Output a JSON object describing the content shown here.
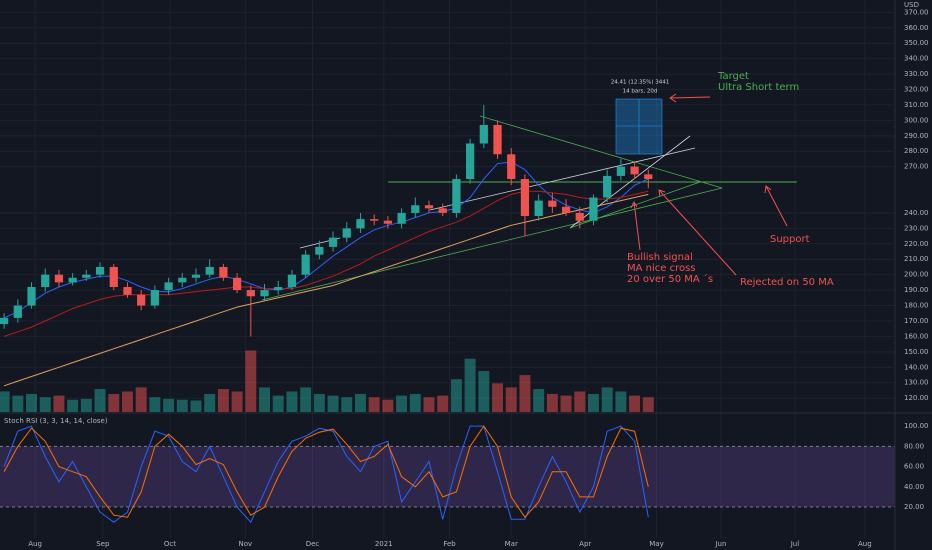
{
  "chart_data": [
    {
      "type": "candlestick",
      "currency": "USD",
      "open": [
        168,
        172,
        180,
        192,
        200,
        195,
        198,
        200,
        205,
        192,
        187,
        180,
        190,
        195,
        198,
        200,
        205,
        198,
        190,
        186,
        190,
        192,
        200,
        213,
        218,
        224,
        230,
        236,
        235,
        233,
        240,
        245,
        243,
        240,
        262,
        285,
        297,
        278,
        262,
        238,
        248,
        244,
        240,
        235,
        250,
        264,
        270,
        265
      ],
      "high": [
        175,
        184,
        195,
        204,
        203,
        201,
        203,
        208,
        207,
        195,
        190,
        193,
        198,
        201,
        204,
        210,
        207,
        201,
        193,
        194,
        196,
        203,
        216,
        222,
        228,
        234,
        240,
        239,
        238,
        243,
        250,
        248,
        246,
        265,
        288,
        310,
        300,
        282,
        265,
        252,
        253,
        249,
        244,
        252,
        268,
        275,
        273,
        268
      ],
      "low": [
        165,
        169,
        178,
        189,
        192,
        193,
        196,
        198,
        190,
        185,
        177,
        178,
        187,
        192,
        195,
        198,
        196,
        188,
        160,
        183,
        187,
        190,
        198,
        210,
        215,
        221,
        227,
        232,
        230,
        230,
        237,
        240,
        238,
        237,
        259,
        282,
        275,
        258,
        225,
        235,
        240,
        238,
        230,
        232,
        247,
        261,
        262,
        256
      ],
      "close": [
        172,
        180,
        192,
        200,
        195,
        198,
        200,
        205,
        192,
        187,
        180,
        190,
        195,
        198,
        200,
        205,
        198,
        190,
        186,
        190,
        192,
        200,
        213,
        218,
        224,
        230,
        236,
        235,
        233,
        240,
        245,
        243,
        240,
        262,
        285,
        297,
        278,
        262,
        238,
        248,
        244,
        240,
        235,
        250,
        264,
        270,
        265,
        262
      ],
      "up_color": "#26a69a",
      "down_color": "#ef5350",
      "moving_averages": [
        {
          "color": "#2962ff",
          "values": [
            172,
            176,
            182,
            188,
            192,
            195,
            197,
            199,
            199,
            196,
            192,
            189,
            189,
            191,
            194,
            197,
            199,
            197,
            194,
            191,
            190,
            192,
            198,
            205,
            212,
            218,
            224,
            229,
            232,
            234,
            237,
            240,
            241,
            243,
            250,
            262,
            272,
            273,
            268,
            258,
            250,
            245,
            242,
            240,
            244,
            250,
            258,
            262
          ]
        },
        {
          "color": "#b71c1c",
          "values": [
            160,
            163,
            166,
            170,
            174,
            178,
            181,
            184,
            186,
            187,
            187,
            187,
            187,
            188,
            189,
            190,
            191,
            192,
            192,
            191,
            191,
            191,
            193,
            196,
            199,
            203,
            207,
            212,
            216,
            220,
            224,
            228,
            231,
            234,
            238,
            243,
            248,
            252,
            254,
            254,
            253,
            252,
            250,
            249,
            249,
            250,
            252,
            254
          ]
        },
        {
          "color": "#e0a060",
          "values": [
            128,
            131,
            134,
            137,
            140,
            143,
            146,
            149,
            152,
            155,
            158,
            161,
            164,
            167,
            170,
            173,
            176,
            179,
            181,
            183,
            185,
            187,
            189,
            191,
            193,
            196,
            199,
            202,
            205,
            208,
            211,
            214,
            217,
            220,
            223,
            226,
            229,
            232,
            234,
            236,
            238,
            240,
            242,
            244,
            246,
            248,
            250,
            252
          ]
        }
      ],
      "volume": {
        "ylim": [
          0,
          100
        ],
        "values": [
          25,
          20,
          22,
          18,
          20,
          15,
          16,
          28,
          22,
          25,
          30,
          18,
          16,
          15,
          14,
          22,
          28,
          25,
          75,
          30,
          20,
          25,
          30,
          22,
          20,
          18,
          22,
          18,
          15,
          20,
          22,
          18,
          20,
          40,
          65,
          50,
          35,
          30,
          45,
          28,
          22,
          20,
          25,
          22,
          30,
          25,
          20,
          18
        ]
      },
      "xlim": [
        -0.3,
        65
      ],
      "xticks": [
        {
          "value": 2.26,
          "label": "Aug"
        },
        {
          "value": 7.2,
          "label": "Sep"
        },
        {
          "value": 12.1,
          "label": "Oct"
        },
        {
          "value": 17.6,
          "label": "Nov"
        },
        {
          "value": 22.5,
          "label": "Dec"
        },
        {
          "value": 27.7,
          "label": "2021"
        },
        {
          "value": 32.5,
          "label": "Feb"
        },
        {
          "value": 37.0,
          "label": "Mar"
        },
        {
          "value": 42.4,
          "label": "Apr"
        },
        {
          "value": 47.6,
          "label": "May"
        },
        {
          "value": 52.3,
          "label": "Jun"
        },
        {
          "value": 57.7,
          "label": "Jul"
        },
        {
          "value": 62.8,
          "label": "Aug"
        }
      ],
      "ylim": [
        111,
        378
      ],
      "yticks": [
        {
          "value": 120,
          "label": "120.00"
        },
        {
          "value": 130,
          "label": "130.00"
        },
        {
          "value": 140,
          "label": "140.00"
        },
        {
          "value": 150,
          "label": "150.00"
        },
        {
          "value": 160,
          "label": "160.00"
        },
        {
          "value": 170,
          "label": "170.00"
        },
        {
          "value": 180,
          "label": "180.00"
        },
        {
          "value": 190,
          "label": "190.00"
        },
        {
          "value": 200,
          "label": "200.00"
        },
        {
          "value": 210,
          "label": "210.00"
        },
        {
          "value": 220,
          "label": "220.00"
        },
        {
          "value": 230,
          "label": "230.00"
        },
        {
          "value": 240,
          "label": "240.00"
        },
        {
          "value": 270,
          "label": "270.00"
        },
        {
          "value": 280,
          "label": "280.00"
        },
        {
          "value": 290,
          "label": "290.00"
        },
        {
          "value": 300,
          "label": "300.00"
        },
        {
          "value": 310,
          "label": "310.00"
        },
        {
          "value": 320,
          "label": "320.00"
        },
        {
          "value": 330,
          "label": "330.00"
        },
        {
          "value": 340,
          "label": "340.00"
        },
        {
          "value": 350,
          "label": "350.00"
        },
        {
          "value": 360,
          "label": "360.00"
        },
        {
          "value": 370,
          "label": "370.00"
        }
      ],
      "grid": true,
      "annotations": [
        "Target",
        "Ultra Short term",
        "24.41 (12.35%) 3441",
        "14 bars, 20d",
        "Support",
        "Bullish signal",
        "MA nice cross",
        "20 over 50 MA ´s",
        "Rejected on 50 MA"
      ]
    },
    {
      "type": "oscillator",
      "title": "Stoch RSI (3, 3, 14, 14, close)",
      "series": [
        {
          "color": "#2962ff",
          "values": [
            60,
            95,
            100,
            70,
            45,
            65,
            40,
            15,
            5,
            15,
            60,
            95,
            90,
            65,
            55,
            80,
            50,
            20,
            5,
            35,
            65,
            85,
            90,
            98,
            95,
            70,
            55,
            80,
            85,
            25,
            45,
            65,
            8,
            60,
            100,
            100,
            55,
            8,
            8,
            40,
            70,
            45,
            15,
            40,
            95,
            100,
            85,
            10
          ]
        },
        {
          "color": "#ff6d00",
          "values": [
            55,
            80,
            98,
            85,
            60,
            55,
            50,
            30,
            12,
            10,
            35,
            80,
            92,
            80,
            62,
            68,
            62,
            35,
            12,
            20,
            50,
            75,
            88,
            94,
            97,
            82,
            65,
            70,
            82,
            50,
            40,
            55,
            30,
            35,
            80,
            100,
            80,
            30,
            10,
            25,
            55,
            55,
            30,
            30,
            70,
            98,
            95,
            40
          ]
        }
      ],
      "band": [
        20,
        80
      ],
      "band_color": "#7e57c2",
      "ylim": [
        -17.5,
        111
      ],
      "yticks": [
        {
          "value": 20,
          "label": "20.00"
        },
        {
          "value": 40,
          "label": "40.00"
        },
        {
          "value": 60,
          "label": "60.00"
        },
        {
          "value": 80,
          "label": "80.00"
        },
        {
          "value": 100,
          "label": "100.00"
        }
      ]
    }
  ]
}
